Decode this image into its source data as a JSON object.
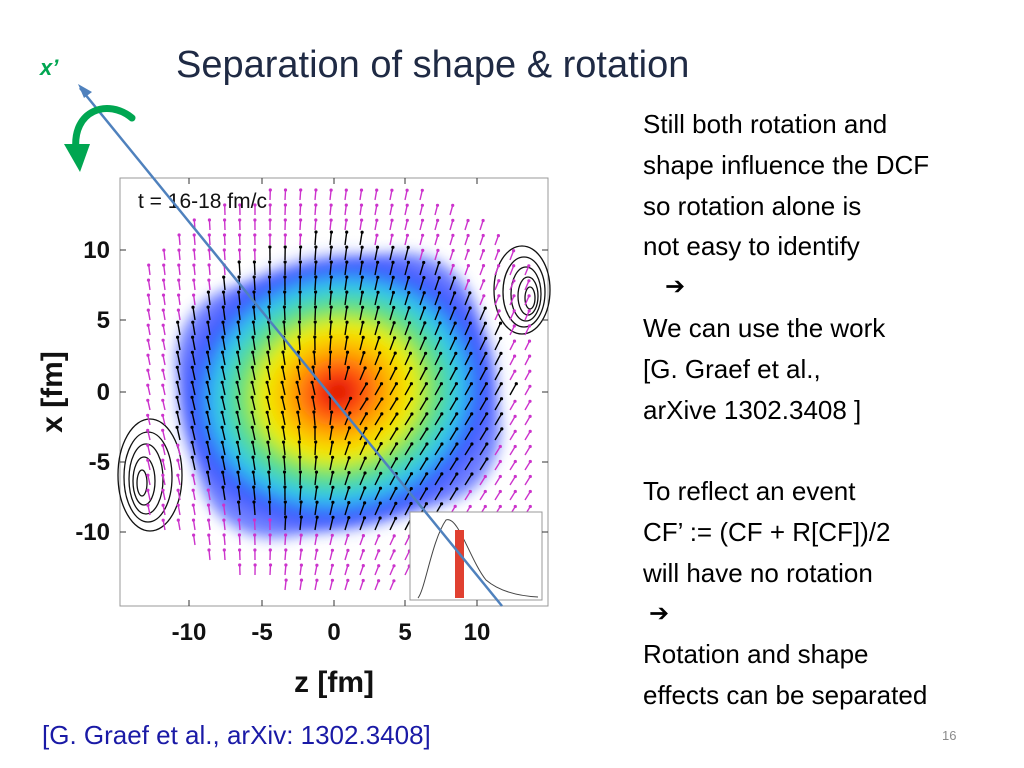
{
  "slide": {
    "title": "Separation of shape & rotation",
    "axis_marker": "x’",
    "citation": "[G. Graef et al., arXiv: 1302.3408]",
    "page_number": "16"
  },
  "right_text": {
    "line1": "Still both rotation and",
    "line2": "shape influence the DCF",
    "line3": "so  rotation alone is",
    "line4": "not easy to identify",
    "arrow1": "➔",
    "line5": "We can use the work",
    "line6": "[G. Graef et al.,",
    "line7": "arXive 1302.3408 ]",
    "line8": "To reflect an event",
    "line9": "CF’ :=  (CF + R[CF])/2",
    "line10": "will have no rotation",
    "arrow2": "➔",
    "line11": "Rotation and shape",
    "line12": "effects can be separated"
  },
  "chart_data": {
    "type": "heatmap",
    "annotation": "t = 16-18 fm/c",
    "xlabel": "z [fm]",
    "ylabel": "x [fm]",
    "x_ticks": [
      "-10",
      "-5",
      "0",
      "5",
      "10"
    ],
    "y_ticks": [
      "10",
      "5",
      "0",
      "-5",
      "-10"
    ],
    "xlim": [
      -15,
      15
    ],
    "ylim": [
      -15,
      15
    ],
    "colors": {
      "arrow_line": "#4f81bd",
      "rotation_arrow": "#00a651",
      "velocity_arrows_inner": "#000000",
      "velocity_arrows_outer": "#cc33cc",
      "inset_bar": "#e04030"
    }
  }
}
